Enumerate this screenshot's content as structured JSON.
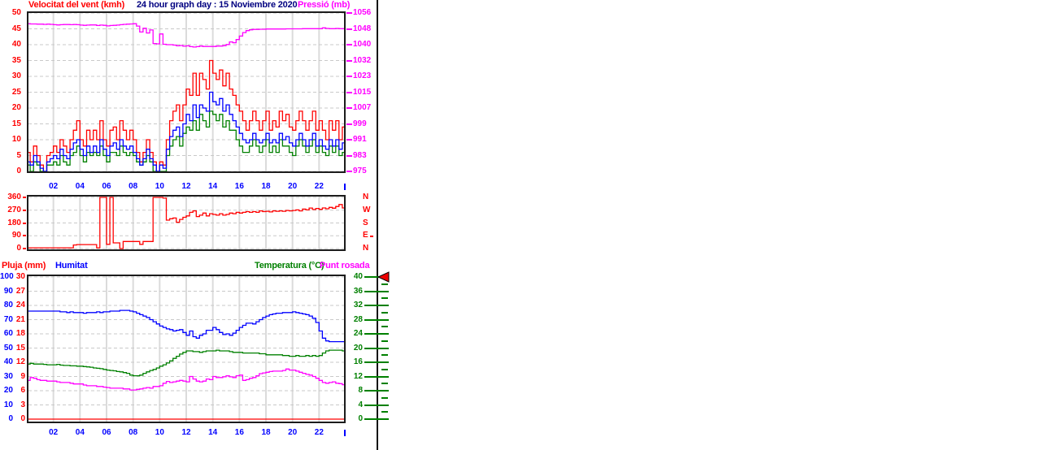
{
  "header": {
    "wind_axis_label": "Velocitat del vent (kmh)",
    "title": "24 hour graph day : 15 Noviembre 2020",
    "pressure_axis_label": "Pressió (mb)"
  },
  "bottom_header": {
    "rain_label": "Pluja (mm)",
    "humidity_label": "Humitat",
    "temperature_label": "Temperatura (°C)",
    "dewpoint_label": "Punt rosada"
  },
  "colors": {
    "red": "#FF0000",
    "blue": "#0000FF",
    "green": "#008000",
    "magenta": "#FF00FF",
    "navy": "#000080",
    "grid_v": "#DBDBDB",
    "grid_h": "#C9C9C9",
    "border": "#1C1C1C",
    "axis_line": "#111111",
    "arrow_fill": "#EE0000"
  },
  "x_tick_labels": [
    "02",
    "04",
    "06",
    "08",
    "10",
    "12",
    "14",
    "16",
    "18",
    "20",
    "22"
  ],
  "chart_data": [
    {
      "id": "wind-pressure",
      "type": "line",
      "title": "24 hour graph day : 15 Noviembre 2020",
      "x_range_hours": [
        0,
        24
      ],
      "sample_interval_hours": 0.25,
      "left_axis": {
        "label": "Velocitat del vent (kmh)",
        "color": "#FF0000",
        "range": [
          0,
          50
        ],
        "ticks": [
          50,
          45,
          40,
          35,
          30,
          25,
          20,
          15,
          10,
          5,
          0
        ]
      },
      "right_axis": {
        "label": "Pressió (mb)",
        "color": "#FF00FF",
        "range": [
          975,
          1056
        ],
        "ticks": [
          1056,
          1048,
          1040,
          1032,
          1023,
          1015,
          1007,
          999,
          991,
          983,
          975
        ]
      },
      "series": [
        {
          "name": "wind-gust",
          "color": "#FF0000",
          "range": [
            0,
            50
          ],
          "values": [
            6,
            3,
            8,
            5,
            2,
            0,
            5,
            6,
            8,
            6,
            10,
            8,
            6,
            10,
            13,
            16,
            10,
            8,
            13,
            10,
            13,
            10,
            16,
            10,
            8,
            13,
            14,
            10,
            16,
            13,
            10,
            13,
            10,
            6,
            3,
            6,
            10,
            6,
            3,
            0,
            3,
            2,
            10,
            16,
            19,
            21,
            16,
            21,
            26,
            24,
            31,
            24,
            31,
            29,
            26,
            35,
            31,
            29,
            32,
            27,
            31,
            26,
            24,
            21,
            19,
            16,
            13,
            16,
            19,
            16,
            13,
            16,
            19,
            13,
            16,
            14,
            19,
            16,
            18,
            14,
            13,
            16,
            19,
            16,
            13,
            16,
            19,
            13,
            16,
            13,
            10,
            16,
            13,
            16,
            10,
            14,
            13
          ]
        },
        {
          "name": "wind-low",
          "color": "#008000",
          "range": [
            0,
            50
          ],
          "values": [
            2,
            0,
            3,
            2,
            0,
            0,
            2,
            2,
            3,
            2,
            5,
            3,
            2,
            5,
            6,
            8,
            5,
            3,
            6,
            5,
            6,
            5,
            8,
            5,
            3,
            6,
            6,
            5,
            8,
            6,
            5,
            6,
            5,
            3,
            2,
            3,
            5,
            3,
            0,
            0,
            0,
            0,
            5,
            8,
            10,
            11,
            8,
            12,
            14,
            13,
            16,
            13,
            18,
            16,
            14,
            19,
            18,
            16,
            18,
            14,
            16,
            13,
            13,
            10,
            8,
            6,
            6,
            8,
            10,
            8,
            6,
            8,
            10,
            6,
            8,
            6,
            10,
            8,
            8,
            6,
            5,
            8,
            10,
            8,
            6,
            8,
            10,
            6,
            8,
            6,
            5,
            8,
            6,
            8,
            5,
            6,
            6
          ]
        },
        {
          "name": "wind-average",
          "color": "#0000FF",
          "range": [
            0,
            50
          ],
          "values": [
            3,
            2,
            5,
            3,
            1,
            0,
            3,
            4,
            5,
            4,
            7,
            5,
            4,
            7,
            9,
            10,
            7,
            5,
            8,
            6,
            8,
            6,
            10,
            7,
            5,
            8,
            9,
            7,
            10,
            8,
            7,
            8,
            6,
            4,
            2,
            4,
            7,
            4,
            2,
            0,
            2,
            1,
            7,
            11,
            13,
            14,
            11,
            15,
            18,
            16,
            21,
            17,
            21,
            20,
            19,
            25,
            22,
            21,
            23,
            19,
            21,
            18,
            16,
            14,
            12,
            10,
            9,
            10,
            12,
            10,
            9,
            10,
            12,
            9,
            10,
            9,
            12,
            10,
            11,
            9,
            8,
            10,
            12,
            10,
            8,
            10,
            12,
            8,
            10,
            8,
            7,
            10,
            8,
            10,
            7,
            9,
            8
          ]
        },
        {
          "name": "pressure",
          "color": "#FF00FF",
          "range": [
            975,
            1056
          ],
          "values": [
            1050.5,
            1050.4,
            1050.4,
            1050.3,
            1050.3,
            1050.2,
            1050.3,
            1050.2,
            1050.0,
            1049.9,
            1050.0,
            1050.1,
            1050.1,
            1050.0,
            1050.1,
            1050.0,
            1049.8,
            1049.7,
            1049.8,
            1049.9,
            1049.9,
            1049.6,
            1049.8,
            1049.7,
            1049.4,
            1049.6,
            1049.7,
            1049.8,
            1050.0,
            1050.2,
            1050.3,
            1050.4,
            1050.5,
            1049.3,
            1046.3,
            1048.2,
            1045.8,
            1047.3,
            1040.4,
            1040.2,
            1045.3,
            1040.0,
            1039.8,
            1039.8,
            1039.6,
            1039.2,
            1039.4,
            1039.0,
            1039.2,
            1038.8,
            1038.6,
            1038.8,
            1039.1,
            1038.9,
            1038.9,
            1038.9,
            1038.9,
            1039.1,
            1039.1,
            1039.3,
            1039.9,
            1041.2,
            1040.8,
            1042.4,
            1044.2,
            1046.0,
            1047.0,
            1047.4,
            1047.6,
            1047.6,
            1047.7,
            1047.7,
            1047.8,
            1047.8,
            1047.8,
            1047.8,
            1047.8,
            1047.8,
            1047.9,
            1047.9,
            1047.9,
            1047.9,
            1047.9,
            1048.0,
            1048.0,
            1048.0,
            1048.0,
            1048.0,
            1048.0,
            1048.4,
            1048.1,
            1048.0,
            1048.0,
            1048.1,
            1048.0,
            1048.0,
            1048.0
          ]
        }
      ]
    },
    {
      "id": "wind-direction",
      "type": "line",
      "x_range_hours": [
        0,
        24
      ],
      "sample_interval_hours": 0.25,
      "left_axis": {
        "label": "",
        "color": "#FF0000",
        "range": [
          0,
          360
        ],
        "ticks": [
          360,
          270,
          180,
          90,
          0
        ]
      },
      "right_axis": {
        "label": "",
        "color": "#FF0000",
        "range": [
          0,
          360
        ],
        "ticks": [
          "N",
          "W",
          "S",
          "E",
          "N"
        ]
      },
      "series": [
        {
          "name": "direction-degrees",
          "color": "#FF0000",
          "range": [
            0,
            360
          ],
          "values": [
            5,
            5,
            5,
            5,
            5,
            5,
            5,
            5,
            5,
            5,
            5,
            5,
            5,
            5,
            25,
            28,
            28,
            28,
            28,
            28,
            28,
            5,
            360,
            360,
            30,
            360,
            40,
            40,
            0,
            50,
            50,
            50,
            50,
            50,
            30,
            50,
            50,
            50,
            360,
            360,
            360,
            355,
            200,
            210,
            215,
            185,
            205,
            220,
            230,
            255,
            265,
            225,
            235,
            250,
            230,
            245,
            240,
            235,
            245,
            235,
            240,
            250,
            245,
            255,
            250,
            255,
            260,
            255,
            260,
            255,
            265,
            260,
            262,
            258,
            265,
            262,
            265,
            262,
            268,
            265,
            268,
            272,
            265,
            278,
            272,
            285,
            275,
            282,
            276,
            286,
            280,
            290,
            284,
            296,
            310,
            286,
            290
          ]
        }
      ]
    },
    {
      "id": "rain-humidity-temp-dew",
      "type": "line",
      "x_range_hours": [
        0,
        24
      ],
      "sample_interval_hours": 0.25,
      "left_axis": {
        "label": "Humitat",
        "color": "#0000FF",
        "range": [
          0,
          100
        ],
        "ticks": [
          100,
          90,
          80,
          70,
          60,
          50,
          40,
          30,
          20,
          10,
          0
        ]
      },
      "left_axis2": {
        "label": "Pluja (mm)",
        "color": "#FF0000",
        "range": [
          0,
          30
        ],
        "ticks": [
          30,
          27,
          24,
          21,
          18,
          15,
          12,
          9,
          6,
          3,
          0
        ]
      },
      "right_axis": {
        "label": "Temperatura (°C)",
        "color": "#008000",
        "range": [
          0,
          40
        ],
        "ticks": [
          40,
          36,
          32,
          28,
          24,
          20,
          16,
          12,
          8,
          4,
          0
        ]
      },
      "series": [
        {
          "name": "pluja",
          "color": "#FF0000",
          "range": [
            0,
            30
          ],
          "constant": 0
        },
        {
          "name": "humitat",
          "color": "#0000FF",
          "range": [
            0,
            100
          ],
          "values": [
            76,
            76,
            76,
            76,
            76,
            76,
            76,
            76,
            76,
            76,
            75.5,
            75.5,
            75,
            75.5,
            75,
            75,
            75,
            74.5,
            75,
            75,
            75,
            75.5,
            75,
            75.5,
            75.5,
            76,
            76,
            76,
            76.5,
            76.5,
            76.5,
            76,
            75.5,
            74.5,
            73.5,
            72.5,
            71.5,
            70,
            68.5,
            67,
            65.5,
            64.5,
            63.5,
            63,
            62,
            62.5,
            63,
            61,
            59,
            62,
            58,
            57,
            59,
            60,
            62.5,
            62.5,
            64.5,
            63,
            61,
            59.5,
            60,
            59,
            60.5,
            62.5,
            64.5,
            66,
            67.5,
            67.5,
            67,
            68.5,
            70,
            71.5,
            72.5,
            73.5,
            74,
            74.5,
            74.5,
            75,
            75,
            75,
            75.5,
            75,
            74.5,
            74,
            73.5,
            72.5,
            71,
            68,
            62,
            57,
            55,
            54.5,
            54.5,
            54.5,
            54.5,
            54.5,
            55.5
          ]
        },
        {
          "name": "temperatura",
          "color": "#008000",
          "range": [
            0,
            40
          ],
          "values": [
            15.5,
            15.7,
            15.5,
            15.5,
            15.5,
            15.4,
            15.3,
            15.3,
            15.3,
            15.4,
            15.2,
            15.1,
            15.1,
            15.0,
            15.0,
            14.9,
            14.9,
            14.8,
            14.7,
            14.6,
            14.4,
            14.3,
            14.2,
            14.0,
            13.8,
            13.7,
            13.6,
            13.4,
            13.3,
            13.1,
            12.9,
            12.4,
            12.2,
            12.2,
            12.4,
            12.9,
            13.3,
            13.7,
            14.0,
            14.4,
            14.9,
            15.3,
            15.8,
            16.4,
            17.1,
            17.7,
            18.3,
            18.8,
            19.2,
            19.2,
            19.0,
            19.0,
            18.8,
            19.0,
            19.2,
            19.2,
            19.2,
            19.4,
            19.2,
            19.2,
            19.2,
            19.0,
            18.8,
            18.8,
            18.8,
            18.6,
            18.6,
            18.6,
            18.6,
            18.6,
            18.4,
            18.4,
            18.1,
            18.1,
            18.1,
            18.1,
            18.1,
            17.9,
            17.9,
            17.7,
            17.7,
            17.9,
            17.7,
            17.7,
            17.9,
            17.7,
            17.9,
            17.7,
            17.9,
            18.6,
            19.2,
            19.4,
            19.4,
            19.4,
            19.4,
            19.2,
            19.0
          ]
        },
        {
          "name": "punt-rosada",
          "color": "#FF00FF",
          "range": [
            0,
            40
          ],
          "values": [
            10.9,
            11.7,
            11.5,
            11.1,
            10.9,
            10.9,
            10.7,
            10.7,
            10.7,
            10.5,
            10.3,
            10.3,
            10.3,
            10.1,
            9.9,
            9.9,
            9.9,
            9.6,
            9.4,
            9.4,
            9.4,
            9.2,
            9.2,
            9.0,
            8.9,
            8.7,
            8.7,
            8.7,
            8.7,
            8.5,
            8.5,
            8.2,
            8.2,
            8.4,
            8.5,
            8.7,
            8.9,
            8.7,
            9.2,
            9.2,
            9.4,
            10.1,
            10.6,
            10.3,
            10.5,
            10.7,
            10.9,
            10.7,
            10.5,
            12.0,
            11.3,
            10.7,
            10.5,
            10.7,
            11.3,
            11.1,
            12.0,
            11.7,
            11.7,
            11.9,
            12.2,
            11.9,
            11.7,
            12.2,
            12.4,
            10.9,
            11.1,
            11.5,
            11.7,
            12.2,
            12.8,
            13.0,
            13.2,
            13.4,
            13.5,
            13.5,
            13.5,
            13.7,
            14.1,
            13.8,
            13.8,
            13.5,
            13.2,
            12.9,
            12.6,
            12.4,
            12.0,
            11.5,
            10.9,
            10.3,
            10.1,
            10.3,
            10.5,
            10.1,
            10.0,
            9.7,
            9.4
          ]
        }
      ]
    }
  ]
}
